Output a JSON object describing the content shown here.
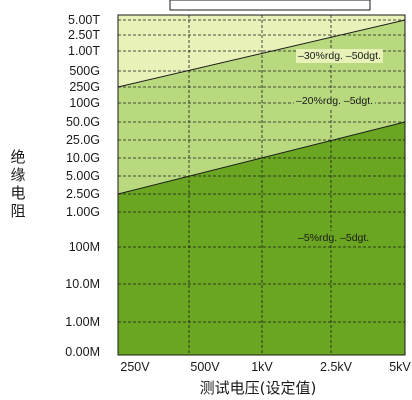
{
  "chart_data": {
    "type": "area",
    "title": "",
    "xlabel": "测试电压(设定值)",
    "ylabel": "绝缘电阻",
    "x": [
      "250V",
      "500V",
      "1kV",
      "2.5kV",
      "5kV"
    ],
    "y_ticks": [
      "5.00T",
      "2.50T",
      "1.00T",
      "500G",
      "250G",
      "100G",
      "50.0G",
      "25.0G",
      "10.0G",
      "5.00G",
      "2.50G",
      "1.00G",
      "100M",
      "10.0M",
      "1.00M",
      "0.00M"
    ],
    "grid": true,
    "legend": "none",
    "series": [
      {
        "name": "–5%rdg. –5dgt.",
        "color": "#6aa621",
        "upper_boundary": [
          {
            "x": "250V",
            "y": "2.50G"
          },
          {
            "x": "5kV",
            "y": "50.0G"
          }
        ]
      },
      {
        "name": "–20%rdg. –5dgt.",
        "color": "#b9d97e",
        "upper_boundary": [
          {
            "x": "250V",
            "y": "250G"
          },
          {
            "x": "5kV",
            "y": "5.00T"
          }
        ]
      },
      {
        "name": "–30%rdg. –50dgt.",
        "color": "#e8f1b8",
        "upper_boundary": [
          {
            "x": "250V",
            "y": "5.00T"
          },
          {
            "x": "5kV",
            "y": "5.00T"
          }
        ]
      }
    ]
  }
}
